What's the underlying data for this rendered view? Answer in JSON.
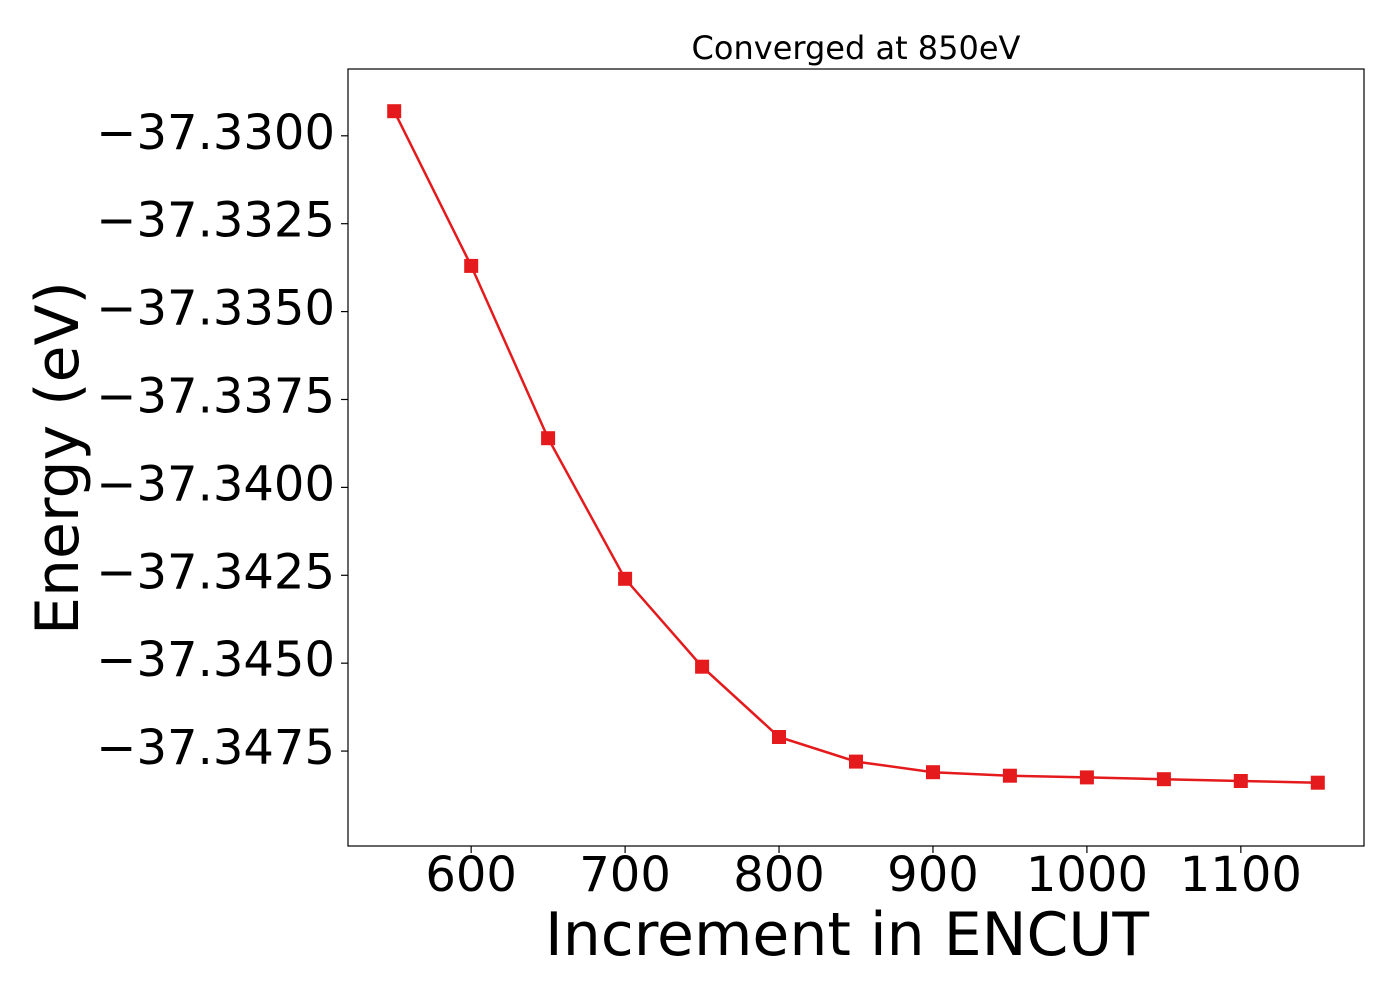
{
  "chart_data": {
    "type": "line",
    "title": "Converged at 850eV",
    "xlabel": "Increment in ENCUT",
    "ylabel": "Energy (eV)",
    "xlim": [
      520,
      1180
    ],
    "ylim": [
      -37.3502,
      -37.3281
    ],
    "x_ticks": [
      600,
      700,
      800,
      900,
      1000,
      1100
    ],
    "x_tick_labels": [
      "600",
      "700",
      "800",
      "900",
      "1000",
      "1100"
    ],
    "y_ticks": [
      -37.33,
      -37.3325,
      -37.335,
      -37.3375,
      -37.34,
      -37.3425,
      -37.345,
      -37.3475
    ],
    "y_tick_labels": [
      "−37.3300",
      "−37.3325",
      "−37.3350",
      "−37.3375",
      "−37.3400",
      "−37.3425",
      "−37.3450",
      "−37.3475"
    ],
    "grid": false,
    "marker": "square",
    "color": "#e41a1c",
    "series": [
      {
        "x": [
          550,
          600,
          650,
          700,
          750,
          800,
          850,
          900,
          950,
          1000,
          1050,
          1100,
          1150
        ],
        "y": [
          -37.3293,
          -37.3337,
          -37.3386,
          -37.3426,
          -37.3451,
          -37.3471,
          -37.3478,
          -37.3481,
          -37.3482,
          -37.34825,
          -37.3483,
          -37.34835,
          -37.3484
        ]
      }
    ]
  }
}
